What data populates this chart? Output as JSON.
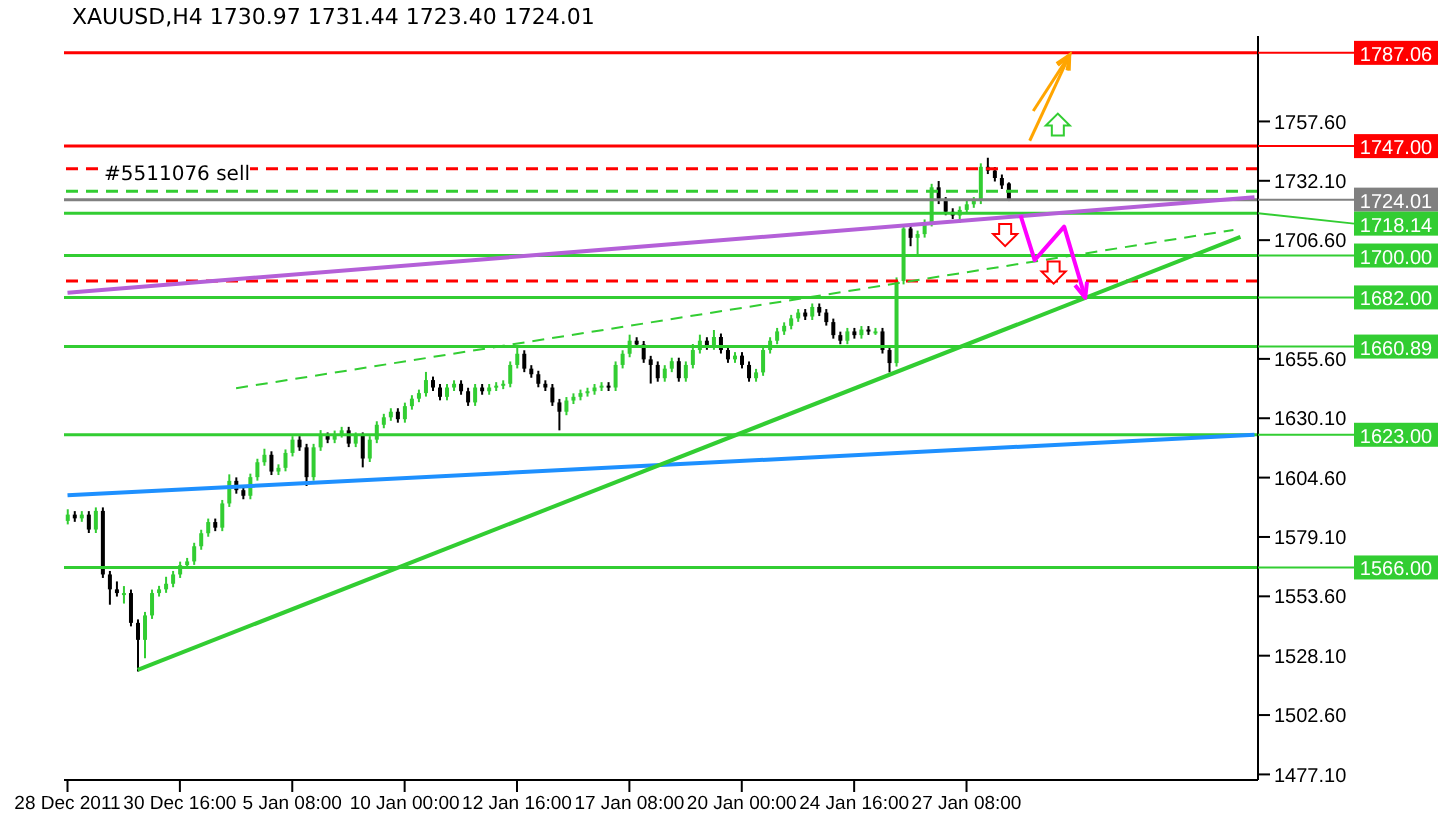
{
  "chart_data": {
    "type": "candlestick",
    "title": "XAUUSD,H4 1730.97 1731.44 1723.40 1724.01",
    "annotations": [
      "#5511076 sell"
    ],
    "categories": [
      "28 Dec 2011",
      null,
      null,
      null,
      null,
      null,
      null,
      null,
      null,
      null,
      null,
      null,
      null,
      null,
      null,
      null,
      "30 Dec 16:00",
      null,
      null,
      null,
      null,
      null,
      null,
      null,
      null,
      null,
      null,
      null,
      null,
      null,
      null,
      null,
      "5 Jan 08:00",
      null,
      null,
      null,
      null,
      null,
      null,
      null,
      null,
      null,
      null,
      null,
      null,
      null,
      null,
      null,
      "10 Jan 00:00",
      null,
      null,
      null,
      null,
      null,
      null,
      null,
      null,
      null,
      null,
      null,
      null,
      null,
      null,
      null,
      "12 Jan 16:00",
      null,
      null,
      null,
      null,
      null,
      null,
      null,
      null,
      null,
      null,
      null,
      null,
      null,
      null,
      null,
      "17 Jan 08:00",
      null,
      null,
      null,
      null,
      null,
      null,
      null,
      null,
      null,
      null,
      null,
      null,
      null,
      null,
      null,
      "20 Jan 00:00",
      null,
      null,
      null,
      null,
      null,
      null,
      null,
      null,
      null,
      null,
      null,
      null,
      null,
      null,
      null,
      "24 Jan 16:00",
      null,
      null,
      null,
      null,
      null,
      null,
      null,
      null,
      null,
      null,
      null,
      null,
      null,
      null,
      null,
      "27 Jan 08:00",
      null,
      null,
      null,
      null,
      null,
      null,
      null,
      null,
      null,
      null,
      null,
      null,
      null,
      null,
      null,
      null,
      null,
      null,
      null,
      null,
      null,
      null,
      null,
      null,
      null,
      null,
      null,
      null,
      null,
      null,
      null,
      null,
      null,
      null,
      null,
      null,
      null,
      null,
      null,
      null,
      null
    ],
    "ohlc": [
      [
        1586.0,
        1591.0,
        1584.5,
        1588.7
      ],
      [
        1588.7,
        1590.2,
        1585.6,
        1587.1
      ],
      [
        1587.1,
        1590.2,
        1585.6,
        1588.7
      ],
      [
        1588.7,
        1590.2,
        1580.8,
        1582.3
      ],
      [
        1582.3,
        1591.8,
        1580.8,
        1590.3
      ],
      [
        1590.3,
        1591.8,
        1561.5,
        1563.0
      ],
      [
        1563.0,
        1564.5,
        1550.0,
        1556.6
      ],
      [
        1556.6,
        1560.0,
        1553.5,
        1555.0
      ],
      [
        1555.0,
        1558.0,
        1550.5,
        1555.0
      ],
      [
        1555.0,
        1556.5,
        1540.7,
        1542.2
      ],
      [
        1542.2,
        1543.7,
        1521.3,
        1534.9
      ],
      [
        1534.9,
        1546.9,
        1527.0,
        1545.4
      ],
      [
        1545.4,
        1556.5,
        1543.9,
        1555.0
      ],
      [
        1555.0,
        1558.1,
        1553.5,
        1556.6
      ],
      [
        1556.6,
        1562.0,
        1555.1,
        1559.0
      ],
      [
        1559.0,
        1564.5,
        1557.5,
        1563.0
      ],
      [
        1563.0,
        1568.5,
        1561.5,
        1567.0
      ],
      [
        1567.0,
        1570.1,
        1565.5,
        1568.6
      ],
      [
        1568.6,
        1576.6,
        1567.1,
        1575.1
      ],
      [
        1575.1,
        1582.2,
        1573.6,
        1580.7
      ],
      [
        1580.7,
        1587.0,
        1579.2,
        1585.5
      ],
      [
        1585.5,
        1587.0,
        1581.6,
        1583.1
      ],
      [
        1583.1,
        1595.0,
        1581.6,
        1593.5
      ],
      [
        1593.5,
        1606.0,
        1592.0,
        1603.2
      ],
      [
        1603.2,
        1604.7,
        1597.7,
        1599.2
      ],
      [
        1599.2,
        1600.7,
        1595.3,
        1596.8
      ],
      [
        1596.8,
        1606.3,
        1595.3,
        1604.8
      ],
      [
        1604.8,
        1612.7,
        1603.3,
        1611.2
      ],
      [
        1611.2,
        1617.0,
        1609.7,
        1614.4
      ],
      [
        1614.4,
        1615.9,
        1605.7,
        1607.2
      ],
      [
        1607.2,
        1610.3,
        1605.7,
        1608.8
      ],
      [
        1608.8,
        1616.7,
        1607.3,
        1615.2
      ],
      [
        1615.2,
        1622.4,
        1613.7,
        1620.9
      ],
      [
        1620.9,
        1622.4,
        1616.1,
        1617.6
      ],
      [
        1617.6,
        1619.1,
        1601.0,
        1604.8
      ],
      [
        1604.8,
        1619.1,
        1603.3,
        1617.6
      ],
      [
        1617.6,
        1625.0,
        1616.1,
        1622.5
      ],
      [
        1622.5,
        1624.0,
        1619.4,
        1620.9
      ],
      [
        1620.9,
        1624.8,
        1619.4,
        1623.3
      ],
      [
        1623.3,
        1626.4,
        1621.8,
        1624.9
      ],
      [
        1624.9,
        1626.4,
        1617.7,
        1619.2
      ],
      [
        1619.2,
        1624.0,
        1617.7,
        1622.5
      ],
      [
        1622.5,
        1624.0,
        1609.0,
        1612.8
      ],
      [
        1612.8,
        1622.4,
        1611.3,
        1620.9
      ],
      [
        1620.9,
        1628.8,
        1619.4,
        1627.3
      ],
      [
        1627.3,
        1632.0,
        1625.8,
        1630.5
      ],
      [
        1630.5,
        1634.4,
        1629.0,
        1632.9
      ],
      [
        1632.9,
        1634.4,
        1628.2,
        1629.7
      ],
      [
        1629.7,
        1636.8,
        1628.2,
        1635.3
      ],
      [
        1635.3,
        1640.0,
        1633.8,
        1638.5
      ],
      [
        1638.5,
        1642.4,
        1637.0,
        1640.9
      ],
      [
        1640.9,
        1650.0,
        1639.4,
        1646.5
      ],
      [
        1646.5,
        1648.0,
        1641.8,
        1643.3
      ],
      [
        1643.3,
        1644.8,
        1637.8,
        1639.3
      ],
      [
        1639.3,
        1644.8,
        1637.8,
        1643.3
      ],
      [
        1643.3,
        1646.4,
        1641.8,
        1644.9
      ],
      [
        1644.9,
        1646.4,
        1640.2,
        1641.7
      ],
      [
        1641.7,
        1643.2,
        1635.4,
        1636.9
      ],
      [
        1636.9,
        1644.8,
        1635.4,
        1643.3
      ],
      [
        1643.3,
        1644.8,
        1640.2,
        1641.7
      ],
      [
        1641.7,
        1644.8,
        1640.2,
        1643.3
      ],
      [
        1643.3,
        1645.6,
        1641.8,
        1644.1
      ],
      [
        1644.1,
        1646.4,
        1642.6,
        1644.9
      ],
      [
        1644.9,
        1654.5,
        1643.4,
        1653.0
      ],
      [
        1653.0,
        1660.5,
        1651.5,
        1657.8
      ],
      [
        1657.8,
        1659.3,
        1649.9,
        1651.4
      ],
      [
        1651.4,
        1652.9,
        1647.5,
        1649.0
      ],
      [
        1649.0,
        1650.5,
        1643.4,
        1644.9
      ],
      [
        1644.9,
        1646.4,
        1641.8,
        1643.3
      ],
      [
        1643.3,
        1644.8,
        1635.4,
        1636.9
      ],
      [
        1636.9,
        1638.4,
        1624.9,
        1632.9
      ],
      [
        1632.9,
        1639.2,
        1631.4,
        1637.7
      ],
      [
        1637.7,
        1640.8,
        1636.2,
        1639.3
      ],
      [
        1639.3,
        1642.4,
        1637.8,
        1640.9
      ],
      [
        1640.9,
        1643.2,
        1639.4,
        1641.7
      ],
      [
        1641.7,
        1644.8,
        1640.2,
        1643.3
      ],
      [
        1643.3,
        1645.6,
        1641.8,
        1644.1
      ],
      [
        1644.1,
        1645.6,
        1641.8,
        1643.3
      ],
      [
        1643.3,
        1654.5,
        1641.8,
        1653.0
      ],
      [
        1653.0,
        1659.3,
        1651.5,
        1657.8
      ],
      [
        1657.8,
        1666.0,
        1656.3,
        1663.4
      ],
      [
        1663.4,
        1664.9,
        1660.3,
        1661.8
      ],
      [
        1661.8,
        1663.3,
        1653.9,
        1655.4
      ],
      [
        1655.4,
        1656.9,
        1645.0,
        1653.0
      ],
      [
        1653.0,
        1654.5,
        1645.8,
        1647.3
      ],
      [
        1647.3,
        1652.9,
        1645.8,
        1651.4
      ],
      [
        1651.4,
        1656.1,
        1649.9,
        1654.6
      ],
      [
        1654.6,
        1656.1,
        1645.8,
        1647.3
      ],
      [
        1647.3,
        1654.5,
        1645.8,
        1653.0
      ],
      [
        1653.0,
        1662.0,
        1651.5,
        1659.4
      ],
      [
        1659.4,
        1666.0,
        1657.9,
        1663.4
      ],
      [
        1663.4,
        1664.9,
        1659.5,
        1661.0
      ],
      [
        1661.0,
        1668.0,
        1659.5,
        1665.0
      ],
      [
        1665.0,
        1666.5,
        1657.9,
        1659.4
      ],
      [
        1659.4,
        1660.9,
        1653.9,
        1655.4
      ],
      [
        1655.4,
        1658.5,
        1653.9,
        1657.0
      ],
      [
        1657.0,
        1658.5,
        1651.5,
        1653.0
      ],
      [
        1653.0,
        1654.5,
        1645.8,
        1647.3
      ],
      [
        1647.3,
        1651.3,
        1645.8,
        1649.8
      ],
      [
        1649.8,
        1660.9,
        1648.3,
        1659.4
      ],
      [
        1659.4,
        1664.9,
        1657.9,
        1663.4
      ],
      [
        1663.4,
        1668.9,
        1661.9,
        1667.4
      ],
      [
        1667.4,
        1671.3,
        1665.9,
        1669.8
      ],
      [
        1669.8,
        1674.5,
        1668.3,
        1673.0
      ],
      [
        1673.0,
        1677.0,
        1671.5,
        1675.5
      ],
      [
        1675.5,
        1677.0,
        1672.3,
        1673.8
      ],
      [
        1673.8,
        1679.4,
        1672.3,
        1677.9
      ],
      [
        1677.9,
        1679.4,
        1674.0,
        1675.5
      ],
      [
        1675.5,
        1677.0,
        1669.9,
        1671.4
      ],
      [
        1671.4,
        1672.9,
        1664.3,
        1665.8
      ],
      [
        1665.8,
        1667.3,
        1661.9,
        1663.4
      ],
      [
        1663.4,
        1668.9,
        1661.9,
        1667.4
      ],
      [
        1667.4,
        1668.9,
        1664.3,
        1665.8
      ],
      [
        1665.8,
        1669.7,
        1664.3,
        1668.2
      ],
      [
        1668.2,
        1669.7,
        1665.9,
        1667.4
      ],
      [
        1667.4,
        1668.9,
        1665.9,
        1667.4
      ],
      [
        1667.4,
        1668.9,
        1657.9,
        1659.4
      ],
      [
        1659.4,
        1660.9,
        1649.8,
        1653.8
      ],
      [
        1653.8,
        1690.6,
        1652.3,
        1689.1
      ],
      [
        1689.1,
        1713.1,
        1687.6,
        1711.6
      ],
      [
        1711.6,
        1713.1,
        1704.0,
        1707.6
      ],
      [
        1707.6,
        1710.7,
        1700.0,
        1709.2
      ],
      [
        1709.2,
        1715.5,
        1707.7,
        1714.0
      ],
      [
        1714.0,
        1730.8,
        1712.5,
        1729.3
      ],
      [
        1729.3,
        1732.0,
        1722.1,
        1723.6
      ],
      [
        1723.6,
        1725.1,
        1717.3,
        1718.8
      ],
      [
        1718.8,
        1720.3,
        1715.7,
        1717.2
      ],
      [
        1717.2,
        1721.1,
        1714.0,
        1719.6
      ],
      [
        1719.6,
        1723.5,
        1718.1,
        1722.0
      ],
      [
        1722.0,
        1725.1,
        1720.5,
        1723.6
      ],
      [
        1723.6,
        1739.6,
        1722.1,
        1738.1
      ],
      [
        1738.1,
        1742.0,
        1735.0,
        1736.5
      ],
      [
        1736.5,
        1738.0,
        1731.8,
        1733.3
      ],
      [
        1733.3,
        1734.8,
        1728.6,
        1730.1
      ],
      [
        1730.97,
        1731.44,
        1723.4,
        1724.01
      ],
      null,
      null,
      null,
      null,
      null,
      null,
      null,
      null,
      null,
      null,
      null,
      null,
      null,
      null,
      null,
      null,
      null,
      null,
      null,
      null,
      null,
      null,
      null,
      null,
      null,
      null,
      null,
      null,
      null,
      null,
      null,
      null,
      null,
      null,
      null
    ],
    "series": [
      {
        "type": "line",
        "color": "#b460d8",
        "values": [
          1684,
          null,
          null,
          null,
          null,
          null,
          null,
          null,
          null,
          null,
          null,
          null,
          null,
          null,
          null,
          null,
          null,
          null,
          null,
          null,
          null,
          null,
          null,
          null,
          null,
          null,
          null,
          null,
          null,
          null,
          null,
          null,
          null,
          null,
          null,
          null,
          null,
          null,
          null,
          null,
          null,
          null,
          null,
          null,
          null,
          null,
          null,
          null,
          null,
          null,
          null,
          null,
          null,
          null,
          null,
          null,
          null,
          null,
          null,
          null,
          null,
          null,
          null,
          null,
          null,
          null,
          null,
          null,
          null,
          null,
          null,
          null,
          null,
          null,
          null,
          null,
          null,
          null,
          null,
          null,
          null,
          null,
          null,
          null,
          null,
          null,
          null,
          null,
          null,
          null,
          null,
          null,
          null,
          null,
          null,
          null,
          null,
          null,
          null,
          null,
          null,
          null,
          null,
          null,
          null,
          null,
          null,
          null,
          null,
          null,
          null,
          null,
          null,
          null,
          null,
          null,
          null,
          null,
          null,
          null,
          null,
          null,
          null,
          null,
          null,
          null,
          null,
          null,
          null,
          null,
          null,
          null,
          null,
          null,
          null,
          null,
          null,
          null,
          null,
          null,
          null,
          null,
          null,
          null,
          null,
          null,
          null,
          null,
          null,
          null,
          null,
          null,
          null,
          null,
          null,
          null,
          null,
          null,
          null,
          null,
          null,
          null,
          null,
          null,
          null,
          null,
          null,
          null,
          null,
          1725
        ]
      },
      {
        "type": "line",
        "color": "#1e90ff",
        "values": [
          1597,
          null,
          null,
          null,
          null,
          null,
          null,
          null,
          null,
          null,
          null,
          null,
          null,
          null,
          null,
          null,
          null,
          null,
          null,
          null,
          null,
          null,
          null,
          null,
          null,
          null,
          null,
          null,
          null,
          null,
          null,
          null,
          null,
          null,
          null,
          null,
          null,
          null,
          null,
          null,
          null,
          null,
          null,
          null,
          null,
          null,
          null,
          null,
          null,
          null,
          null,
          null,
          null,
          null,
          null,
          null,
          null,
          null,
          null,
          null,
          null,
          null,
          null,
          null,
          null,
          null,
          null,
          null,
          null,
          null,
          null,
          null,
          null,
          null,
          null,
          null,
          null,
          null,
          null,
          null,
          null,
          null,
          null,
          null,
          null,
          null,
          null,
          null,
          null,
          null,
          null,
          null,
          null,
          null,
          null,
          null,
          null,
          null,
          null,
          null,
          null,
          null,
          null,
          null,
          null,
          null,
          null,
          null,
          null,
          null,
          null,
          null,
          null,
          null,
          null,
          null,
          null,
          null,
          null,
          null,
          null,
          null,
          null,
          null,
          null,
          null,
          null,
          null,
          null,
          null,
          null,
          null,
          null,
          null,
          null,
          null,
          null,
          null,
          null,
          null,
          null,
          null,
          null,
          null,
          null,
          null,
          null,
          null,
          null,
          null,
          null,
          null,
          null,
          null,
          null,
          null,
          null,
          null,
          null,
          null,
          null,
          null,
          null,
          null,
          null,
          null,
          null,
          null,
          null,
          1623
        ]
      },
      {
        "type": "line",
        "color": "#32cd32",
        "values": [
          null,
          null,
          null,
          null,
          null,
          null,
          null,
          null,
          null,
          null,
          1522,
          null,
          null,
          null,
          null,
          null,
          null,
          null,
          null,
          null,
          null,
          null,
          null,
          null,
          null,
          null,
          null,
          null,
          null,
          null,
          null,
          null,
          null,
          null,
          null,
          null,
          null,
          null,
          null,
          null,
          null,
          null,
          null,
          null,
          null,
          null,
          null,
          null,
          null,
          null,
          null,
          null,
          null,
          null,
          null,
          null,
          null,
          null,
          null,
          null,
          null,
          null,
          null,
          null,
          null,
          null,
          null,
          null,
          null,
          null,
          null,
          null,
          null,
          null,
          null,
          null,
          null,
          null,
          null,
          null,
          null,
          null,
          null,
          null,
          null,
          null,
          null,
          null,
          null,
          null,
          null,
          null,
          null,
          null,
          null,
          null,
          null,
          null,
          null,
          null,
          null,
          null,
          null,
          null,
          null,
          null,
          null,
          null,
          null,
          null,
          null,
          null,
          null,
          null,
          null,
          null,
          null,
          null,
          null,
          null,
          null,
          null,
          null,
          null,
          null,
          null,
          null,
          null,
          null,
          null,
          null,
          null,
          null,
          null,
          null,
          null,
          null,
          null,
          null,
          null,
          null,
          null,
          null,
          null,
          null,
          null,
          null,
          null,
          null,
          null,
          null,
          null,
          null,
          null,
          null,
          null,
          null,
          null,
          null,
          null,
          null,
          null,
          null,
          null,
          null,
          null,
          null,
          1708,
          null,
          null
        ]
      },
      {
        "type": "line",
        "color": "#32cd32",
        "line_style": "dashed",
        "values": [
          null,
          null,
          null,
          null,
          null,
          null,
          null,
          null,
          null,
          null,
          null,
          null,
          null,
          null,
          null,
          null,
          null,
          null,
          null,
          null,
          null,
          null,
          null,
          null,
          1643,
          null,
          null,
          null,
          null,
          null,
          null,
          null,
          null,
          null,
          null,
          null,
          null,
          null,
          null,
          null,
          null,
          null,
          null,
          null,
          null,
          null,
          null,
          null,
          null,
          null,
          null,
          null,
          null,
          null,
          null,
          null,
          null,
          null,
          null,
          null,
          null,
          null,
          null,
          null,
          null,
          null,
          null,
          null,
          null,
          null,
          null,
          null,
          null,
          null,
          null,
          null,
          null,
          null,
          null,
          null,
          null,
          null,
          null,
          null,
          null,
          null,
          null,
          null,
          null,
          null,
          null,
          null,
          null,
          null,
          null,
          null,
          null,
          null,
          null,
          null,
          null,
          null,
          null,
          null,
          null,
          null,
          null,
          null,
          null,
          null,
          null,
          null,
          null,
          null,
          null,
          null,
          null,
          null,
          null,
          null,
          null,
          null,
          null,
          null,
          null,
          null,
          null,
          null,
          null,
          null,
          null,
          null,
          null,
          null,
          null,
          null,
          null,
          null,
          null,
          null,
          null,
          null,
          null,
          null,
          null,
          null,
          null,
          null,
          null,
          null,
          null,
          null,
          null,
          null,
          null,
          null,
          null,
          null,
          null,
          null,
          null,
          null,
          null,
          null,
          null,
          null,
          1711,
          null,
          null,
          null
        ]
      }
    ],
    "ref_lines": [
      {
        "axis": "y",
        "value": 1787.06,
        "label": "1787.06",
        "color": "#ff0000",
        "line_style": "solid"
      },
      {
        "axis": "y",
        "value": 1747.0,
        "label": "1747.00",
        "color": "#ff0000",
        "line_style": "solid"
      },
      {
        "axis": "y",
        "value": 1737.3,
        "color": "#ff0000",
        "line_style": "dashed"
      },
      {
        "axis": "y",
        "value": 1727.6,
        "color": "#32cd32",
        "line_style": "dashed"
      },
      {
        "axis": "y",
        "value": 1724.01,
        "label": "1724.01",
        "color": "#808080",
        "line_style": "solid"
      },
      {
        "axis": "y",
        "value": 1718.14,
        "label": "1718.14",
        "color": "#32cd32",
        "line_style": "solid"
      },
      {
        "axis": "y",
        "value": 1700.0,
        "label": "1700.00",
        "color": "#32cd32",
        "line_style": "solid"
      },
      {
        "axis": "y",
        "value": 1689.1,
        "color": "#ff0000",
        "line_style": "dashed"
      },
      {
        "axis": "y",
        "value": 1682.0,
        "label": "1682.00",
        "color": "#32cd32",
        "line_style": "solid"
      },
      {
        "axis": "y",
        "value": 1660.89,
        "label": "1660.89",
        "color": "#32cd32",
        "line_style": "solid"
      },
      {
        "axis": "y",
        "value": 1623.0,
        "label": "1623.00",
        "color": "#32cd32",
        "line_style": "solid"
      },
      {
        "axis": "y",
        "value": 1566.0,
        "label": "1566.00",
        "color": "#32cd32",
        "line_style": "solid"
      }
    ],
    "ylim": [
      1474.7,
      1794.3
    ],
    "yticks": [
      {
        "value": 1477.1,
        "label": "1477.10"
      },
      {
        "value": 1502.6,
        "label": "1502.60"
      },
      {
        "value": 1528.1,
        "label": "1528.10"
      },
      {
        "value": 1553.6,
        "label": "1553.60"
      },
      {
        "value": 1579.1,
        "label": "1579.10"
      },
      {
        "value": 1604.6,
        "label": "1604.60"
      },
      {
        "value": 1630.1,
        "label": "1630.10"
      },
      {
        "value": 1655.6,
        "label": "1655.60"
      },
      {
        "value": 1706.6,
        "label": "1706.60"
      },
      {
        "value": 1732.1,
        "label": "1732.10"
      },
      {
        "value": 1757.6,
        "label": "1757.60"
      }
    ],
    "tick_labels": true
  }
}
